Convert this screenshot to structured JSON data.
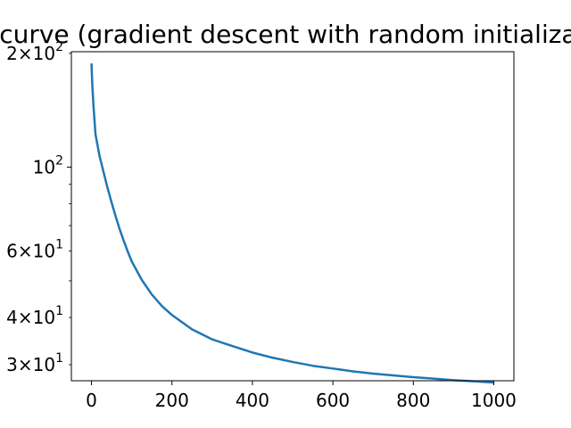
{
  "chart_data": {
    "type": "line",
    "title": "Loss curve (gradient descent with random initialization)",
    "xlabel": "",
    "ylabel": "",
    "y_scale": "log",
    "grid": false,
    "xlim": [
      -50,
      1050
    ],
    "ylim": [
      27.2,
      202.0
    ],
    "x_ticks": [
      {
        "value": 0,
        "label": "0"
      },
      {
        "value": 200,
        "label": "200"
      },
      {
        "value": 400,
        "label": "400"
      },
      {
        "value": 600,
        "label": "600"
      },
      {
        "value": 800,
        "label": "800"
      },
      {
        "value": 1000,
        "label": "1000"
      }
    ],
    "y_major_ticks": [
      {
        "value": 100,
        "base": "10",
        "exponent": "2"
      }
    ],
    "y_minor_ticks": [
      {
        "value": 30,
        "coef": "3",
        "base": "10",
        "exponent": "1"
      },
      {
        "value": 40,
        "coef": "4",
        "base": "10",
        "exponent": "1"
      },
      {
        "value": 50,
        "coef": "",
        "base": "",
        "exponent": ""
      },
      {
        "value": 60,
        "coef": "6",
        "base": "10",
        "exponent": "1"
      },
      {
        "value": 70,
        "coef": "",
        "base": "",
        "exponent": ""
      },
      {
        "value": 80,
        "coef": "",
        "base": "",
        "exponent": ""
      },
      {
        "value": 90,
        "coef": "",
        "base": "",
        "exponent": ""
      },
      {
        "value": 200,
        "coef": "2",
        "base": "10",
        "exponent": "2"
      }
    ],
    "series": [
      {
        "color": "#1f77b4",
        "x": [
          0,
          2,
          5,
          10,
          20,
          30,
          40,
          50,
          60,
          70,
          80,
          90,
          100,
          125,
          150,
          175,
          200,
          250,
          300,
          350,
          400,
          450,
          500,
          550,
          600,
          650,
          700,
          750,
          800,
          850,
          900,
          950,
          1000
        ],
        "y": [
          188,
          165,
          145,
          122,
          107,
          97,
          88,
          80.6,
          74.1,
          68.5,
          63.9,
          59.8,
          56.3,
          50.3,
          46.0,
          42.9,
          40.6,
          37.2,
          35.0,
          33.6,
          32.3,
          31.3,
          30.5,
          29.8,
          29.3,
          28.8,
          28.4,
          28.1,
          27.8,
          27.55,
          27.3,
          27.1,
          26.9
        ]
      }
    ]
  }
}
